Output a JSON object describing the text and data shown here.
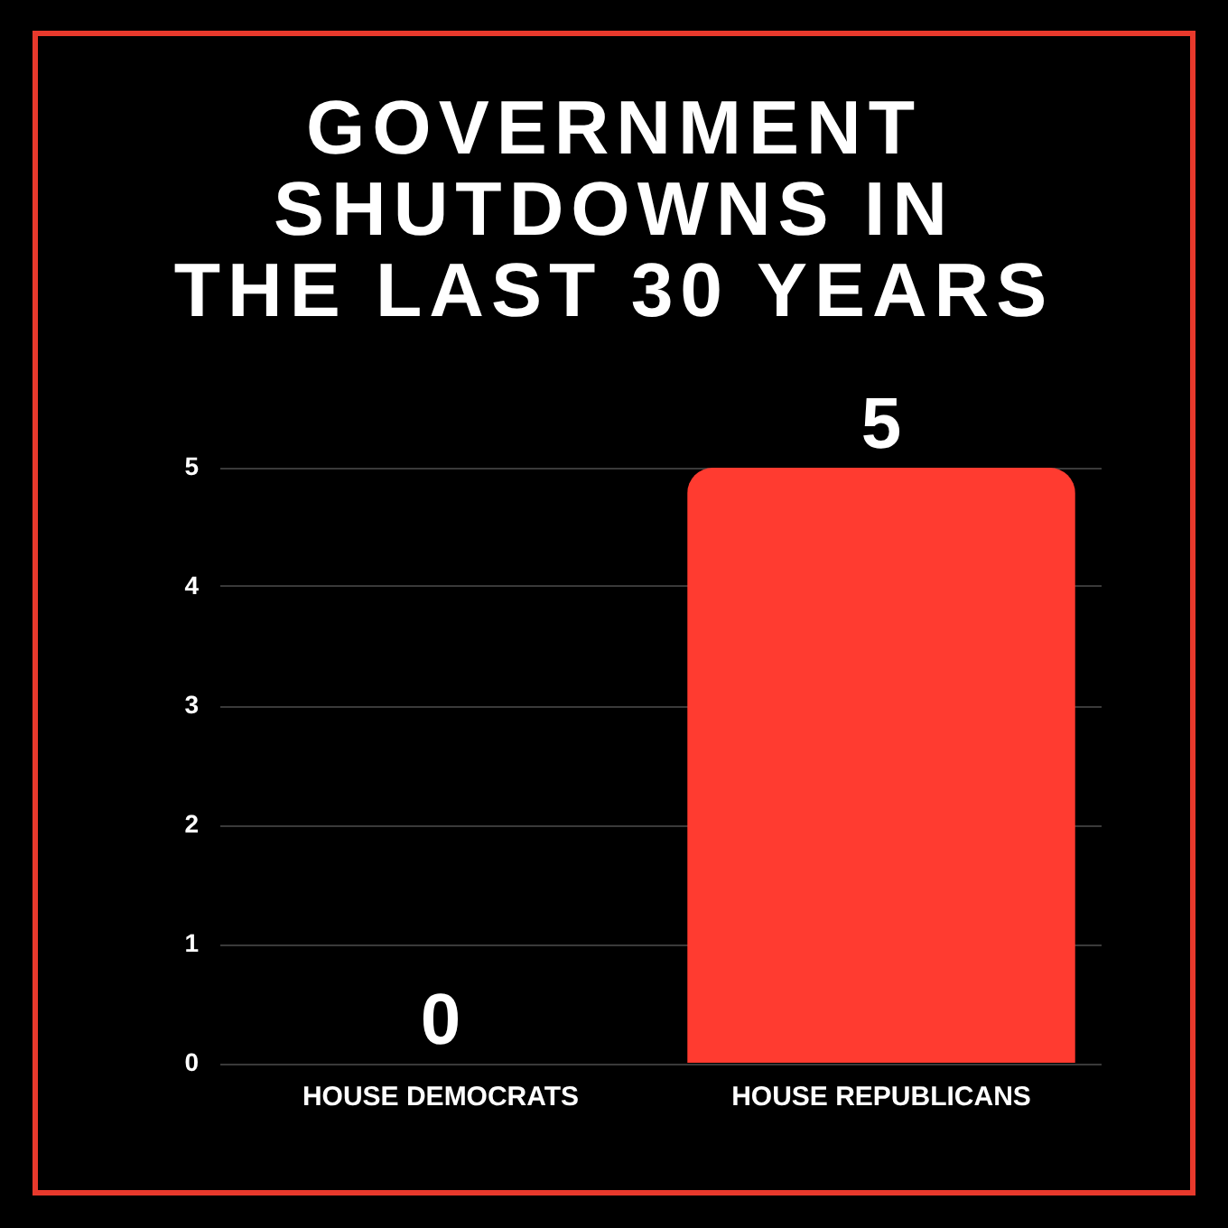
{
  "chart_data": {
    "type": "bar",
    "title": "GOVERNMENT\nSHUTDOWNS IN\nTHE LAST 30 YEARS",
    "categories": [
      "HOUSE DEMOCRATS",
      "HOUSE REPUBLICANS"
    ],
    "values": [
      0,
      5
    ],
    "color": "#ff3b30",
    "ylim": [
      0,
      5
    ],
    "yticks": [
      0,
      1,
      2,
      3,
      4,
      5
    ],
    "grid": "y",
    "data_labels": true
  }
}
